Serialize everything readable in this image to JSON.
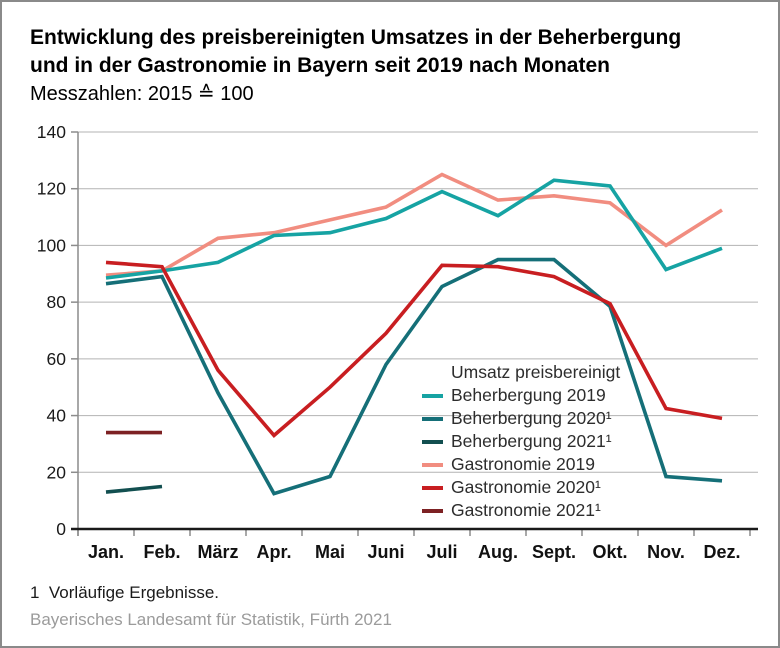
{
  "header": {
    "title_line1": "Entwicklung des preisbereinigten Umsatzes in der Beherbergung",
    "title_line2": "und in der Gastronomie in Bayern seit 2019 nach Monaten",
    "subtitle": "Messzahlen: 2015 ≙ 100"
  },
  "chart_data": {
    "type": "line",
    "title": "Entwicklung des preisbereinigten Umsatzes in der Beherbergung und in der Gastronomie in Bayern seit 2019 nach Monaten",
    "subtitle": "Messzahlen: 2015 ≙ 100",
    "categories": [
      "Jan.",
      "Feb.",
      "März",
      "Apr.",
      "Mai",
      "Juni",
      "Juli",
      "Aug.",
      "Sept.",
      "Okt.",
      "Nov.",
      "Dez."
    ],
    "ylim": [
      0,
      140
    ],
    "y_ticks": [
      0,
      20,
      40,
      60,
      80,
      100,
      120,
      140
    ],
    "grid": true,
    "legend_title": "Umsatz preisbereinigt",
    "legend_position": "inside-right-bottom",
    "series": [
      {
        "name": "Beherbergung 2019",
        "color": "#16a3a3",
        "values": [
          88.5,
          91,
          94,
          103.5,
          104.5,
          109.5,
          119,
          110.5,
          123,
          121,
          91.5,
          99
        ]
      },
      {
        "name": "Beherbergung 2020¹",
        "color": "#156f78",
        "values": [
          86.5,
          89,
          48,
          12.5,
          18.5,
          58,
          85.5,
          95,
          95,
          78.5,
          18.5,
          17
        ]
      },
      {
        "name": "Beherbergung 2021¹",
        "color": "#124f50",
        "values": [
          13,
          15,
          null,
          null,
          null,
          null,
          null,
          null,
          null,
          null,
          null,
          null
        ]
      },
      {
        "name": "Gastronomie 2019",
        "color": "#f18d80",
        "values": [
          89.5,
          91,
          102.5,
          104.5,
          109,
          113.5,
          125,
          116,
          117.5,
          115,
          100,
          112.5
        ]
      },
      {
        "name": "Gastronomie 2020¹",
        "color": "#c81e21",
        "values": [
          94,
          92.5,
          56,
          33,
          50,
          69,
          93,
          92.5,
          89,
          79.5,
          42.5,
          39
        ]
      },
      {
        "name": "Gastronomie 2021¹",
        "color": "#7d2123",
        "values": [
          34,
          34,
          null,
          null,
          null,
          null,
          null,
          null,
          null,
          null,
          null,
          null
        ]
      }
    ]
  },
  "footer": {
    "footnote": "1  Vorläufige Ergebnisse.",
    "source": "Bayerisches Landesamt für Statistik, Fürth 2021"
  },
  "colors": {
    "grid": "#b3b3b3",
    "tick": "#8c8c8c",
    "axis": "#1a1a1a",
    "axis_text": "#1a1a1a",
    "month_text": "#111111"
  }
}
